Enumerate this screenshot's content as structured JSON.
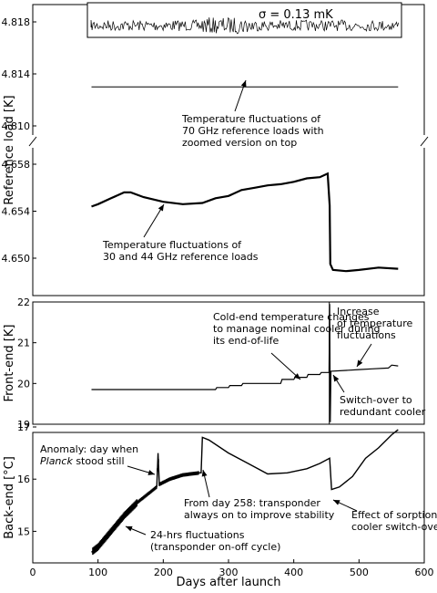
{
  "chart_data": [
    {
      "type": "line",
      "ylabel": "Reference load [K]",
      "sigma_label": "σ = 0.13 mK",
      "upper_ticks": [
        "4.818",
        "4.814",
        "4.810"
      ],
      "lower_ticks": [
        "4.658",
        "4.654",
        "4.650"
      ],
      "series": [
        {
          "values": [
            [
              90,
              4.813
            ],
            [
              560,
              4.813
            ]
          ]
        },
        {
          "values": [
            [
              90,
              4.6544
            ],
            [
              100,
              4.6546
            ],
            [
              120,
              4.6551
            ],
            [
              140,
              4.6556
            ],
            [
              150,
              4.6556
            ],
            [
              170,
              4.6552
            ],
            [
              200,
              4.6548
            ],
            [
              230,
              4.6546
            ],
            [
              260,
              4.6547
            ],
            [
              280,
              4.6551
            ],
            [
              300,
              4.6553
            ],
            [
              320,
              4.6558
            ],
            [
              340,
              4.656
            ],
            [
              360,
              4.6562
            ],
            [
              380,
              4.6563
            ],
            [
              400,
              4.6565
            ],
            [
              420,
              4.6568
            ],
            [
              440,
              4.6569
            ],
            [
              452,
              4.6572
            ],
            [
              455,
              4.6545
            ],
            [
              456,
              4.6495
            ],
            [
              460,
              4.649
            ],
            [
              480,
              4.6489
            ],
            [
              500,
              4.649
            ],
            [
              530,
              4.6492
            ],
            [
              560,
              4.6491
            ]
          ]
        }
      ],
      "annotations": [
        {
          "text": [
            "Temperature fluctuations of",
            "70 GHz reference loads with",
            "zoomed version on top"
          ],
          "x": 270,
          "y": 4.8085
        },
        {
          "text": [
            "Temperature fluctuations of",
            "30 and 44 GHz reference loads"
          ],
          "x": 190,
          "y": 4.651
        }
      ]
    },
    {
      "type": "line",
      "ylabel": "Front-end [K]",
      "ylim": [
        19,
        22
      ],
      "yticks": [
        19,
        20,
        21,
        22
      ],
      "series": [
        {
          "values": [
            [
              90,
              19.85
            ],
            [
              280,
              19.85
            ],
            [
              282,
              19.9
            ],
            [
              300,
              19.9
            ],
            [
              302,
              19.95
            ],
            [
              320,
              19.95
            ],
            [
              322,
              20.0
            ],
            [
              380,
              20.0
            ],
            [
              382,
              20.1
            ],
            [
              400,
              20.1
            ],
            [
              402,
              20.15
            ],
            [
              420,
              20.15
            ],
            [
              422,
              20.22
            ],
            [
              440,
              20.22
            ],
            [
              442,
              20.27
            ],
            [
              454,
              20.27
            ],
            [
              455,
              21.95
            ],
            [
              456,
              19.05
            ],
            [
              457,
              20.3
            ],
            [
              480,
              20.32
            ],
            [
              500,
              20.34
            ],
            [
              520,
              20.36
            ],
            [
              545,
              20.38
            ],
            [
              550,
              20.45
            ],
            [
              560,
              20.43
            ]
          ]
        }
      ],
      "annotations": [
        {
          "text": [
            "Cold-end temperature changes",
            "to manage nominal cooler during",
            "its end-of-life"
          ],
          "x": 345,
          "y": 21.6
        },
        {
          "text": [
            "Increase",
            "of temperature",
            "fluctuations"
          ],
          "x": 463,
          "y": 21.55
        },
        {
          "text": [
            "Switch-over to",
            "redundant cooler"
          ],
          "x": 470,
          "y": 19.8
        }
      ]
    },
    {
      "type": "line",
      "ylabel": "Back-end [°C]",
      "xlabel": "Days after launch",
      "xlim": [
        0,
        600
      ],
      "xticks": [
        0,
        100,
        200,
        300,
        400,
        500,
        600
      ],
      "ylim": [
        14.5,
        17
      ],
      "yticks": [
        15,
        16,
        17
      ],
      "series": [
        {
          "values": [
            [
              90,
              14.6
            ],
            [
              100,
              14.7
            ],
            [
              120,
              15.0
            ],
            [
              140,
              15.3
            ],
            [
              160,
              15.55
            ],
            [
              180,
              15.75
            ],
            [
              190,
              15.85
            ],
            [
              192,
              16.5
            ],
            [
              194,
              15.9
            ],
            [
              210,
              16.0
            ],
            [
              230,
              16.08
            ],
            [
              255,
              16.12
            ],
            [
              258,
              16.12
            ],
            [
              260,
              16.8
            ],
            [
              270,
              16.75
            ],
            [
              300,
              16.5
            ],
            [
              330,
              16.3
            ],
            [
              360,
              16.1
            ],
            [
              390,
              16.12
            ],
            [
              420,
              16.2
            ],
            [
              440,
              16.3
            ],
            [
              455,
              16.4
            ],
            [
              458,
              15.8
            ],
            [
              470,
              15.85
            ],
            [
              490,
              16.05
            ],
            [
              510,
              16.4
            ],
            [
              530,
              16.6
            ],
            [
              550,
              16.85
            ],
            [
              560,
              16.95
            ]
          ]
        }
      ],
      "annotations": [
        {
          "text": [
            "Anomaly: day when",
            "Planck stood still"
          ],
          "x": 5,
          "y": 16.95
        },
        {
          "text": [
            "From day 258: transponder",
            "always on to improve stability"
          ],
          "x": 205,
          "y": 15.7
        },
        {
          "text": [
            "Effect of sorption",
            "cooler switch-over"
          ],
          "x": 390,
          "y": 15.3
        },
        {
          "text": [
            "24-hrs fluctuations",
            "(transponder on-off cycle)"
          ],
          "x": 150,
          "y": 14.95
        }
      ]
    }
  ]
}
